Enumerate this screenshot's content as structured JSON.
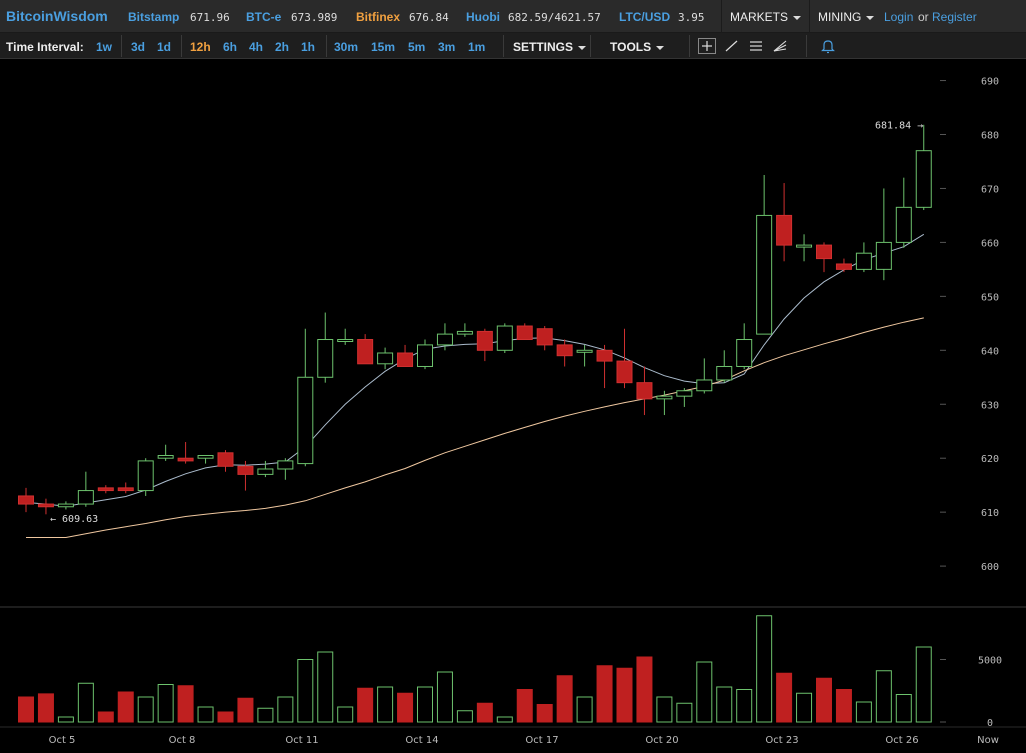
{
  "header": {
    "brand": "BitcoinWisdom",
    "markets": [
      {
        "name": "Bitstamp",
        "price": "671.96"
      },
      {
        "name": "BTC-e",
        "price": "673.989"
      },
      {
        "name": "Bitfinex",
        "price": "676.84"
      },
      {
        "name": "Huobi",
        "price": "682.59/4621.57"
      },
      {
        "name": "LTC/USD",
        "price": "3.95"
      }
    ],
    "markets_menu": "MARKETS",
    "mining_menu": "MINING",
    "login": "Login",
    "or": "or",
    "register": "Register",
    "colors": {
      "link": "#4a9fe0",
      "highlight": "#f0a040"
    }
  },
  "toolbar": {
    "time_interval_label": "Time Interval:",
    "intervals": [
      "1w",
      "3d",
      "1d",
      "12h",
      "6h",
      "4h",
      "2h",
      "1h",
      "30m",
      "15m",
      "5m",
      "3m",
      "1m"
    ],
    "active_interval": "12h",
    "settings": "SETTINGS",
    "tools": "TOOLS",
    "icons": [
      "crosshair-icon",
      "line-draw-icon",
      "horizontal-lines-icon",
      "fan-icon",
      "bell-icon"
    ]
  },
  "chart_data": {
    "type": "candlestick",
    "price_axis": {
      "ticks": [
        "690",
        "680",
        "670",
        "660",
        "650",
        "640",
        "630",
        "620",
        "610",
        "600"
      ],
      "range": [
        597,
        693
      ]
    },
    "volume_axis": {
      "ticks": [
        "5000",
        "0"
      ],
      "range": [
        0,
        8000
      ]
    },
    "x_ticks": [
      "Oct 5",
      "Oct 8",
      "Oct 11",
      "Oct 14",
      "Oct 17",
      "Oct 20",
      "Oct 23",
      "Oct 26",
      "Now"
    ],
    "annotations": {
      "high_label": "681.84",
      "low_label": "609.63"
    },
    "candles": [
      {
        "o": 613,
        "h": 614.5,
        "l": 610,
        "c": 611.5,
        "v": 2000
      },
      {
        "o": 611.5,
        "h": 612.5,
        "l": 609.6,
        "c": 611,
        "v": 2250
      },
      {
        "o": 611,
        "h": 612,
        "l": 610.5,
        "c": 611.5,
        "v": 400
      },
      {
        "o": 611.5,
        "h": 617.5,
        "l": 611,
        "c": 614,
        "v": 3100
      },
      {
        "o": 614.5,
        "h": 615,
        "l": 613.5,
        "c": 614,
        "v": 800
      },
      {
        "o": 614.5,
        "h": 615.5,
        "l": 613.5,
        "c": 614,
        "v": 2400
      },
      {
        "o": 614,
        "h": 620,
        "l": 613,
        "c": 619.5,
        "v": 2000
      },
      {
        "o": 620,
        "h": 622.5,
        "l": 619.5,
        "c": 620.5,
        "v": 3000
      },
      {
        "o": 620,
        "h": 623,
        "l": 619,
        "c": 619.5,
        "v": 2900
      },
      {
        "o": 620,
        "h": 620.5,
        "l": 619,
        "c": 620.5,
        "v": 1200
      },
      {
        "o": 621,
        "h": 621.5,
        "l": 617.5,
        "c": 618.5,
        "v": 800
      },
      {
        "o": 618.5,
        "h": 619.5,
        "l": 614,
        "c": 617,
        "v": 1900
      },
      {
        "o": 617,
        "h": 619.5,
        "l": 616.5,
        "c": 618,
        "v": 1100
      },
      {
        "o": 618,
        "h": 620,
        "l": 616,
        "c": 619.5,
        "v": 2000
      },
      {
        "o": 619,
        "h": 644,
        "l": 618.5,
        "c": 635,
        "v": 5000
      },
      {
        "o": 635,
        "h": 647,
        "l": 634,
        "c": 642,
        "v": 5600
      },
      {
        "o": 642,
        "h": 644,
        "l": 641,
        "c": 642,
        "v": 1200
      },
      {
        "o": 642,
        "h": 643,
        "l": 637.5,
        "c": 637.5,
        "v": 2700
      },
      {
        "o": 637.5,
        "h": 640.5,
        "l": 636.5,
        "c": 639.5,
        "v": 2800
      },
      {
        "o": 639.5,
        "h": 641,
        "l": 637,
        "c": 637,
        "v": 2300
      },
      {
        "o": 637,
        "h": 642,
        "l": 636.5,
        "c": 641,
        "v": 2800
      },
      {
        "o": 641,
        "h": 645,
        "l": 640,
        "c": 643,
        "v": 4000
      },
      {
        "o": 643,
        "h": 645,
        "l": 642.5,
        "c": 643.5,
        "v": 900
      },
      {
        "o": 643.5,
        "h": 644,
        "l": 638,
        "c": 640,
        "v": 1500
      },
      {
        "o": 640,
        "h": 645,
        "l": 639.5,
        "c": 644.5,
        "v": 400
      },
      {
        "o": 644.5,
        "h": 645,
        "l": 642,
        "c": 642,
        "v": 2600
      },
      {
        "o": 644,
        "h": 644.5,
        "l": 640,
        "c": 641,
        "v": 1400
      },
      {
        "o": 641,
        "h": 642,
        "l": 637,
        "c": 639,
        "v": 3700
      },
      {
        "o": 640,
        "h": 641,
        "l": 637,
        "c": 640,
        "v": 2000
      },
      {
        "o": 640,
        "h": 641,
        "l": 633,
        "c": 638,
        "v": 4500
      },
      {
        "o": 638,
        "h": 644,
        "l": 633,
        "c": 634,
        "v": 4300
      },
      {
        "o": 634,
        "h": 637,
        "l": 628,
        "c": 631,
        "v": 5200
      },
      {
        "o": 631,
        "h": 632.5,
        "l": 628,
        "c": 631.5,
        "v": 2000
      },
      {
        "o": 631.5,
        "h": 633,
        "l": 629.5,
        "c": 632.5,
        "v": 1500
      },
      {
        "o": 632.5,
        "h": 638.5,
        "l": 632,
        "c": 634.5,
        "v": 4800
      },
      {
        "o": 634.5,
        "h": 640,
        "l": 634,
        "c": 637,
        "v": 2800
      },
      {
        "o": 637,
        "h": 645,
        "l": 636.5,
        "c": 642,
        "v": 2600
      },
      {
        "o": 643,
        "h": 672.5,
        "l": 643,
        "c": 665,
        "v": 8500
      },
      {
        "o": 665,
        "h": 671,
        "l": 656.5,
        "c": 659.5,
        "v": 3900
      },
      {
        "o": 659.5,
        "h": 661.5,
        "l": 656.5,
        "c": 659.5,
        "v": 2300
      },
      {
        "o": 659.5,
        "h": 660,
        "l": 654.5,
        "c": 657,
        "v": 3500
      },
      {
        "o": 656,
        "h": 657,
        "l": 654.5,
        "c": 655,
        "v": 2600
      },
      {
        "o": 655,
        "h": 660,
        "l": 654.5,
        "c": 658,
        "v": 1600
      },
      {
        "o": 655,
        "h": 670,
        "l": 653,
        "c": 660,
        "v": 4100
      },
      {
        "o": 660,
        "h": 672,
        "l": 659,
        "c": 666.5,
        "v": 2200
      },
      {
        "o": 666.5,
        "h": 681.8,
        "l": 666,
        "c": 677,
        "v": 6000
      }
    ],
    "moving_averages": [
      {
        "period": "short",
        "color": "#aabbcc",
        "values": [
          611.8,
          611.5,
          611.1,
          611.7,
          612.3,
          612.9,
          614.1,
          615.7,
          617.1,
          618.2,
          618.8,
          618.7,
          618.9,
          619.3,
          622.1,
          626.2,
          630.0,
          633.2,
          636.1,
          638.4,
          640.2,
          640.8,
          641.1,
          641.2,
          641.8,
          642.2,
          642.3,
          641.8,
          641.1,
          640.1,
          638.6,
          636.8,
          635.3,
          634.3,
          633.8,
          634.0,
          635.6,
          641.0,
          645.8,
          649.7,
          652.7,
          654.9,
          656.8,
          658.0,
          659.2,
          661.5
        ]
      },
      {
        "period": "long",
        "color": "#f0c8a0",
        "values": [
          605.3,
          605.3,
          605.3,
          606.0,
          606.7,
          607.3,
          607.9,
          608.6,
          609.2,
          609.6,
          610.0,
          610.3,
          610.7,
          611.3,
          612.1,
          613.3,
          614.5,
          615.6,
          616.9,
          618.1,
          619.6,
          621.0,
          622.2,
          623.4,
          624.6,
          625.7,
          626.8,
          627.8,
          628.7,
          629.5,
          630.3,
          631.0,
          631.7,
          632.5,
          633.3,
          634.5,
          636.2,
          637.7,
          639.0,
          640.1,
          641.2,
          642.2,
          643.3,
          644.3,
          645.2,
          646.0
        ]
      }
    ],
    "colors": {
      "up": "#6dc26d",
      "down": "#bf2020",
      "grid": "#2a2a2a",
      "axis_text": "#bbb"
    }
  }
}
